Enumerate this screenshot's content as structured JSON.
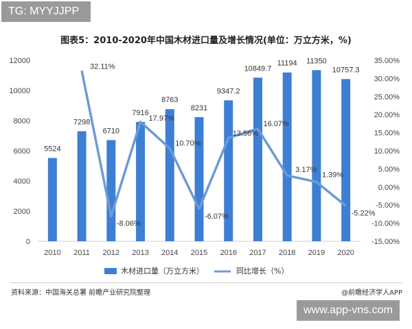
{
  "watermark_tag": "TG: MYYJJPP",
  "site_tag": "www.app-vns.com",
  "footer": {
    "source": "资料来源：中国海关总署 前瞻产业研究院整理",
    "credit": "@前瞻经济学人APP"
  },
  "chart_data": {
    "type": "bar+line",
    "title": "图表5：2010-2020年中国木材进口量及增长情况(单位：万立方米，%)",
    "categories": [
      "2010",
      "2011",
      "2012",
      "2013",
      "2014",
      "2015",
      "2016",
      "2017",
      "2018",
      "2019",
      "2020"
    ],
    "series": [
      {
        "name": "木材进口量（万立方米）",
        "type": "bar",
        "axis": "left",
        "values": [
          5524,
          7298,
          6710,
          7916,
          8763,
          8231,
          9347.2,
          10849.7,
          11194,
          11350,
          10757.3
        ],
        "labels": [
          "5524",
          "7298",
          "6710",
          "7916",
          "8763",
          "8231",
          "9347.2",
          "10849.7",
          "11194",
          "11350",
          "10757.3"
        ]
      },
      {
        "name": "同比增长（%）",
        "type": "line",
        "axis": "right",
        "x": [
          "2011",
          "2012",
          "2013",
          "2014",
          "2015",
          "2016",
          "2017",
          "2018",
          "2019",
          "2020"
        ],
        "values": [
          32.11,
          -8.06,
          17.97,
          10.7,
          -6.07,
          13.56,
          16.07,
          3.17,
          1.39,
          -5.22
        ],
        "labels": [
          "32.11%",
          "-8.06%",
          "17.97%",
          "10.70%",
          "-6.07%",
          "13.56%",
          "16.07%",
          "3.17%",
          "1.39%",
          "-5.22%"
        ]
      }
    ],
    "y_left": {
      "min": 0,
      "max": 12000,
      "ticks": [
        "0",
        "2000",
        "4000",
        "6000",
        "8000",
        "10000",
        "12000"
      ]
    },
    "y_right": {
      "min": -15,
      "max": 35,
      "ticks": [
        "35.00%",
        "30.00%",
        "25.00%",
        "20.00%",
        "15.00%",
        "10.00%",
        "5.00%",
        "0.00%",
        "-5.00%",
        "-10.00%",
        "-15.00%"
      ]
    },
    "legend_position": "bottom-center",
    "colors": {
      "bar": "#3e7fd6",
      "line": "#6b9bd6"
    }
  }
}
